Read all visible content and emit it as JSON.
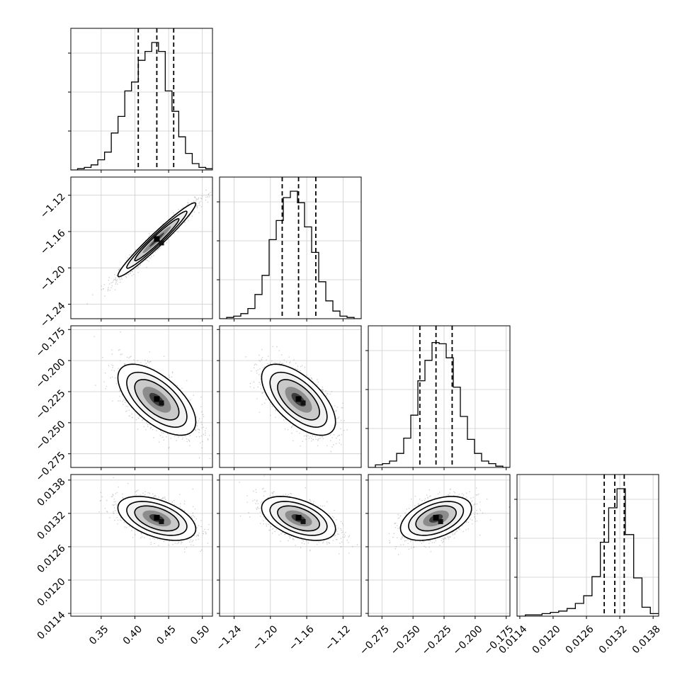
{
  "chart_data": {
    "type": "corner",
    "parameters": [
      {
        "range": [
          0.305,
          0.515
        ],
        "ticks": [
          0.35,
          0.4,
          0.45,
          0.5
        ],
        "tick_labels": [
          "0.35",
          "0.40",
          "0.45",
          "0.50"
        ],
        "quantiles": [
          0.405,
          0.4325,
          0.4575
        ],
        "histogram": [
          0,
          0.01,
          0.02,
          0.04,
          0.08,
          0.14,
          0.29,
          0.42,
          0.62,
          0.69,
          0.86,
          0.93,
          1.0,
          0.93,
          0.62,
          0.46,
          0.26,
          0.13,
          0.05,
          0.02,
          0.01
        ]
      },
      {
        "range": [
          -1.256,
          -1.1
        ],
        "ticks": [
          -1.24,
          -1.2,
          -1.16,
          -1.12
        ],
        "tick_labels": [
          "−1.24",
          "−1.20",
          "−1.16",
          "−1.12"
        ],
        "quantiles": [
          -1.187,
          -1.169,
          -1.15
        ],
        "histogram": [
          0,
          0.01,
          0.02,
          0.04,
          0.08,
          0.19,
          0.34,
          0.62,
          0.77,
          0.95,
          1.0,
          0.91,
          0.72,
          0.52,
          0.29,
          0.14,
          0.06,
          0.02,
          0.01,
          0
        ]
      },
      {
        "range": [
          -0.286,
          -0.172
        ],
        "ticks": [
          -0.275,
          -0.25,
          -0.225,
          -0.2,
          -0.175
        ],
        "tick_labels": [
          "−0.275",
          "−0.250",
          "−0.225",
          "−0.200",
          "−0.175"
        ],
        "quantiles": [
          -0.2445,
          -0.2315,
          -0.2185
        ],
        "histogram": [
          0,
          0.02,
          0.03,
          0.05,
          0.11,
          0.23,
          0.41,
          0.68,
          0.84,
          0.98,
          0.97,
          0.86,
          0.63,
          0.4,
          0.22,
          0.11,
          0.05,
          0.03,
          0.01,
          0
        ]
      },
      {
        "range": [
          0.01135,
          0.0139
        ],
        "ticks": [
          0.0114,
          0.012,
          0.0126,
          0.0132,
          0.0138
        ],
        "tick_labels": [
          "0.0114",
          "0.0120",
          "0.0126",
          "0.0132",
          "0.0138"
        ],
        "quantiles": [
          0.01292,
          0.01311,
          0.01328
        ],
        "histogram": [
          0,
          0.01,
          0.01,
          0.02,
          0.03,
          0.04,
          0.06,
          0.1,
          0.16,
          0.31,
          0.58,
          0.85,
          1.0,
          0.64,
          0.3,
          0.07,
          0.02
        ]
      }
    ],
    "correlations": [
      [
        1.0,
        0.97,
        -0.62,
        -0.48
      ],
      [
        0.97,
        1.0,
        -0.62,
        -0.48
      ],
      [
        -0.62,
        -0.62,
        1.0,
        0.45
      ],
      [
        -0.48,
        -0.48,
        0.45,
        1.0
      ]
    ],
    "grid": true,
    "xlabel": "",
    "ylabel": "",
    "title": ""
  }
}
